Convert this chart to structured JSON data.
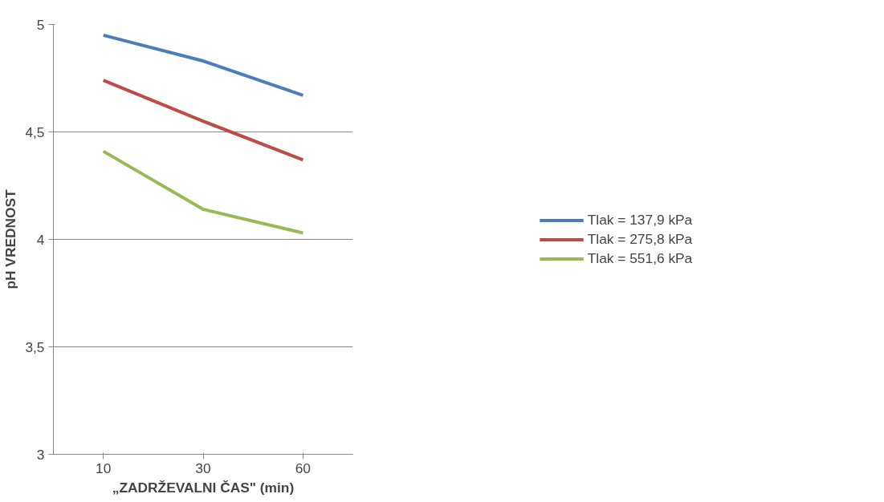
{
  "chart_data": {
    "type": "line",
    "xlabel": "„ZADRŽEVALNI ČAS\" (min)",
    "ylabel": "pH VREDNOST",
    "categories": [
      "10",
      "30",
      "60"
    ],
    "series": [
      {
        "name": "Tlak = 137,9 kPa",
        "color": "#4a7ebb",
        "values": [
          4.95,
          4.83,
          4.67
        ]
      },
      {
        "name": "Tlak = 275,8 kPa",
        "color": "#be4b48",
        "values": [
          4.74,
          4.55,
          4.37
        ]
      },
      {
        "name": "Tlak = 551,6 kPa",
        "color": "#98b954",
        "values": [
          4.41,
          4.14,
          4.03
        ]
      }
    ],
    "ylim": [
      3,
      5
    ],
    "yticks": [
      3,
      {
        "value": 3.5,
        "label": "3,5"
      },
      4,
      {
        "value": 4.5,
        "label": "4,5"
      },
      5
    ],
    "grid": "y",
    "legend": "right",
    "marker": "none",
    "line_style": "solid"
  }
}
